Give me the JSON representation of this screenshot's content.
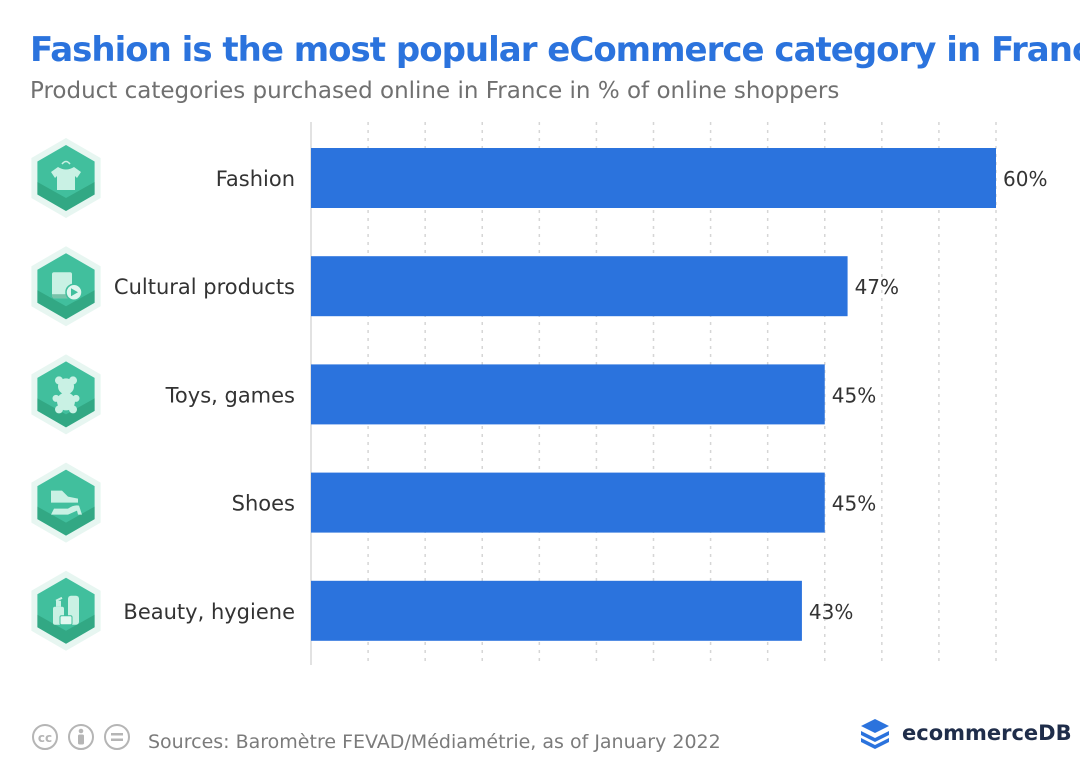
{
  "title": "Fashion is the most popular eCommerce category in France",
  "subtitle": "Product categories purchased online in France in % of online shoppers",
  "source": "Sources: Baromètre FEVAD/Médiamétrie, as of January 2022",
  "brand": "ecommerceDB",
  "colors": {
    "bar": "#2b73dd",
    "title": "#2b73dd",
    "icon_fill": "#41bf9d",
    "icon_dark": "#27956f"
  },
  "chart_data": {
    "type": "bar",
    "orientation": "horizontal",
    "categories": [
      "Fashion",
      "Cultural products",
      "Toys, games",
      "Shoes",
      "Beauty, hygiene"
    ],
    "category_icons": [
      "tshirt-icon",
      "media-icon",
      "teddy-bear-icon",
      "shoes-icon",
      "cosmetics-icon"
    ],
    "values": [
      60,
      47,
      45,
      45,
      43
    ],
    "data_labels": [
      "60%",
      "47%",
      "45%",
      "45%",
      "43%"
    ],
    "unit": "%",
    "xlim": [
      0,
      60
    ],
    "grid": true
  }
}
